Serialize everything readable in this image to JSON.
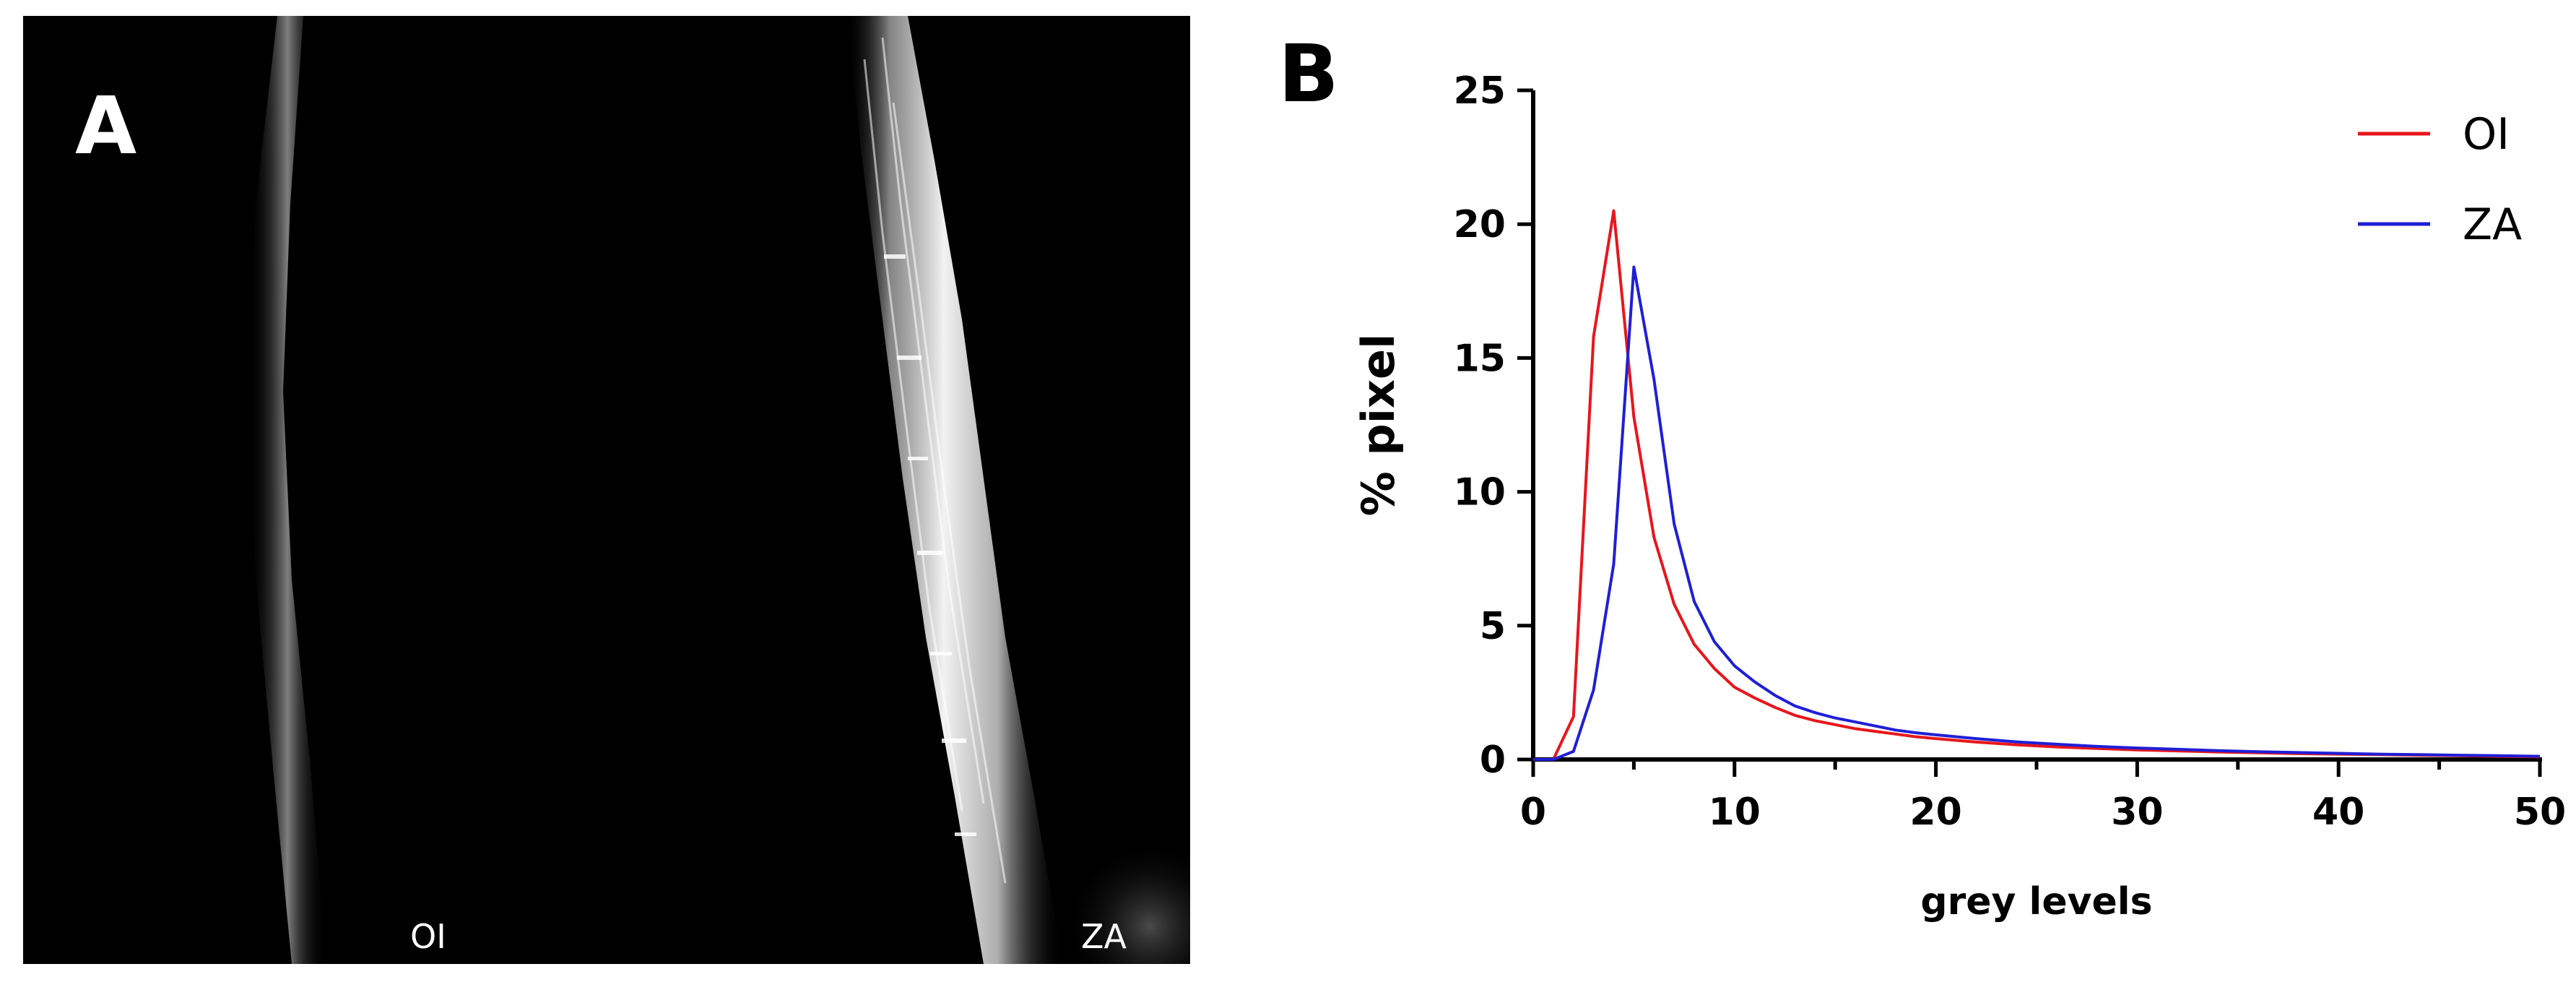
{
  "panel_a": {
    "letter": "A",
    "labels": [
      "OI",
      "ZA"
    ]
  },
  "panel_b": {
    "letter": "B"
  },
  "chart_data": {
    "type": "line",
    "title": "",
    "xlabel": "grey levels",
    "ylabel": "% pixel",
    "xlim": [
      0,
      50
    ],
    "ylim": [
      0,
      25
    ],
    "xticks": [
      0,
      10,
      20,
      30,
      40,
      50
    ],
    "yticks": [
      0,
      5,
      10,
      15,
      20,
      25
    ],
    "grid": false,
    "legend_position": "top-right",
    "colors": {
      "OI": "#e8161b",
      "ZA": "#1f1fd6"
    },
    "series": [
      {
        "name": "OI",
        "x": [
          0,
          1,
          2,
          3,
          4,
          5,
          6,
          7,
          8,
          9,
          10,
          11,
          12,
          13,
          14,
          15,
          16,
          17,
          18,
          19,
          20,
          22,
          24,
          26,
          28,
          30,
          32,
          34,
          36,
          38,
          40,
          42,
          44,
          46,
          48,
          50
        ],
        "y": [
          0,
          0,
          1.6,
          15.8,
          20.5,
          12.8,
          8.3,
          5.8,
          4.3,
          3.4,
          2.7,
          2.3,
          1.95,
          1.65,
          1.45,
          1.3,
          1.15,
          1.05,
          0.95,
          0.85,
          0.78,
          0.65,
          0.55,
          0.47,
          0.41,
          0.36,
          0.32,
          0.28,
          0.25,
          0.22,
          0.2,
          0.18,
          0.16,
          0.14,
          0.12,
          0.1
        ]
      },
      {
        "name": "ZA",
        "x": [
          0,
          1,
          2,
          3,
          4,
          5,
          6,
          7,
          8,
          9,
          10,
          11,
          12,
          13,
          14,
          15,
          16,
          17,
          18,
          19,
          20,
          22,
          24,
          26,
          28,
          30,
          32,
          34,
          36,
          38,
          40,
          42,
          44,
          46,
          48,
          50
        ],
        "y": [
          0,
          0,
          0.3,
          2.6,
          7.3,
          18.4,
          14.2,
          8.8,
          5.9,
          4.4,
          3.5,
          2.9,
          2.4,
          2.0,
          1.75,
          1.55,
          1.4,
          1.25,
          1.1,
          1.0,
          0.92,
          0.78,
          0.66,
          0.57,
          0.49,
          0.43,
          0.38,
          0.33,
          0.29,
          0.26,
          0.23,
          0.2,
          0.18,
          0.16,
          0.14,
          0.12
        ]
      }
    ]
  }
}
